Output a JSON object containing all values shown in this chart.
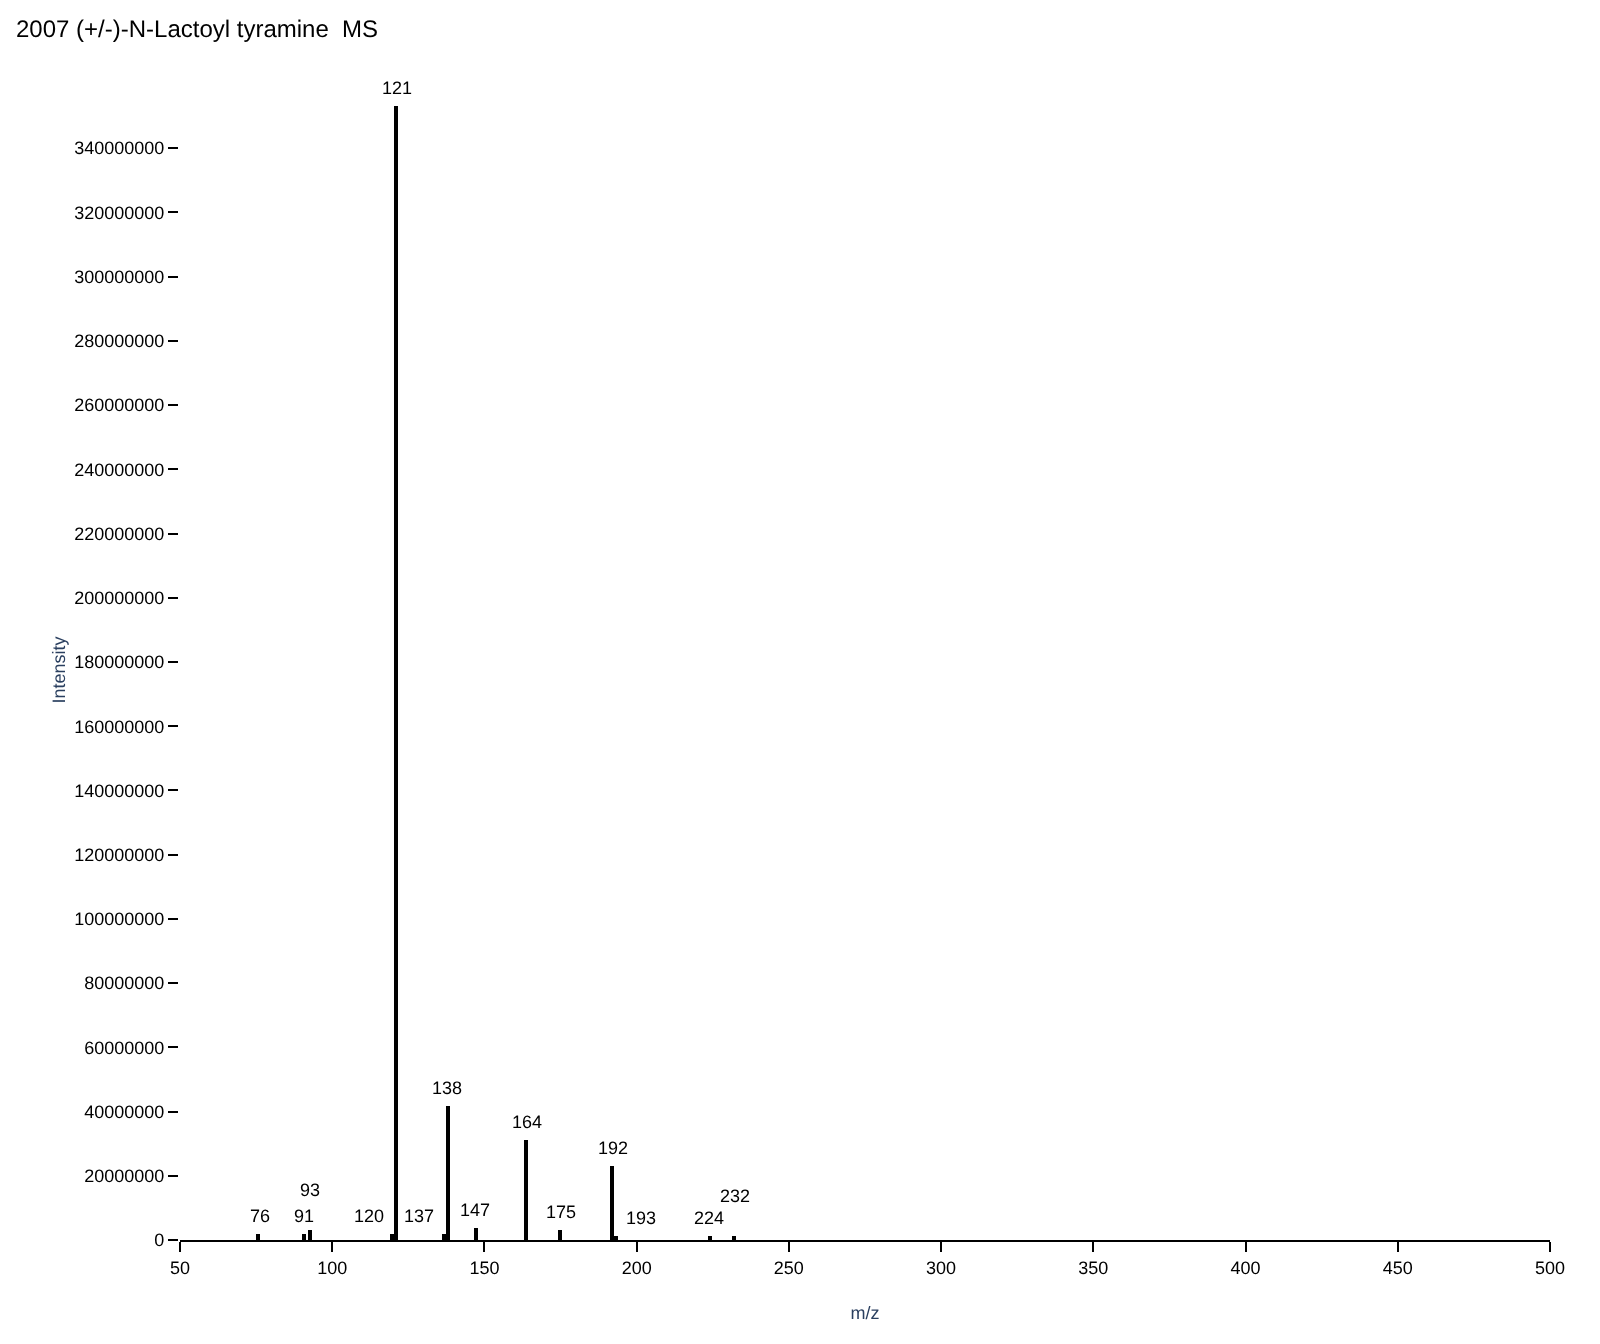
{
  "chart_data": {
    "type": "bar",
    "title": "2007 (+/-)-N-Lactoyl tyramine  MS",
    "xlabel": "m/z",
    "ylabel": "Intensity",
    "x": [
      76,
      91,
      93,
      120,
      121,
      137,
      138,
      147,
      164,
      175,
      192,
      193,
      224,
      232
    ],
    "series": [
      {
        "color": "#000000",
        "values": [
          2000000,
          2000000,
          3000000,
          2000000,
          353000000,
          2000000,
          42000000,
          4000000,
          31000000,
          3000000,
          23000000,
          1000000,
          1500000,
          1500000
        ]
      }
    ],
    "annotations": [
      {
        "text": "76",
        "x": 76,
        "y": 2000000
      },
      {
        "text": "91",
        "x": 91,
        "y": 2000000
      },
      {
        "text": "93",
        "x": 93,
        "y": 3000000
      },
      {
        "text": "120",
        "x": 120,
        "y": 2000000
      },
      {
        "text": "121",
        "x": 121,
        "y": 353000000
      },
      {
        "text": "137",
        "x": 137,
        "y": 2000000
      },
      {
        "text": "138",
        "x": 138,
        "y": 42000000
      },
      {
        "text": "147",
        "x": 147,
        "y": 4000000
      },
      {
        "text": "164",
        "x": 164,
        "y": 31000000
      },
      {
        "text": "175",
        "x": 175,
        "y": 3000000
      },
      {
        "text": "192",
        "x": 192,
        "y": 23000000
      },
      {
        "text": "193",
        "x": 193,
        "y": 1000000
      },
      {
        "text": "224",
        "x": 224,
        "y": 1500000
      },
      {
        "text": "232",
        "x": 232,
        "y": 1500000
      }
    ],
    "xlim": [
      50,
      500
    ],
    "xticks": [
      50,
      100,
      150,
      200,
      250,
      300,
      350,
      400,
      450,
      500
    ],
    "ylim": [
      0,
      355000000
    ],
    "yticks": [
      0,
      20000000,
      40000000,
      60000000,
      80000000,
      100000000,
      120000000,
      140000000,
      160000000,
      180000000,
      200000000,
      220000000,
      240000000,
      260000000,
      280000000,
      300000000,
      320000000,
      340000000
    ]
  }
}
